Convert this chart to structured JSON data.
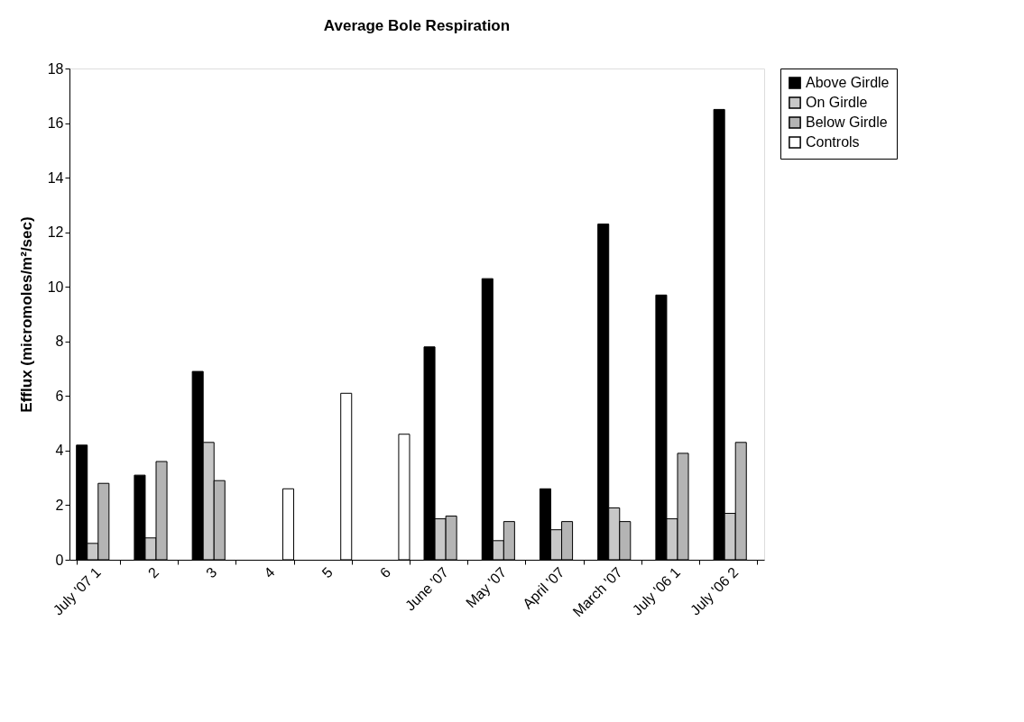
{
  "chart_data": {
    "type": "bar",
    "title": "Average Bole Respiration",
    "ylabel": "Efflux (micromoles/m²/sec)",
    "categories": [
      "July '07 1",
      "2",
      "3",
      "4",
      "5",
      "6",
      "June '07",
      "May '07",
      "April '07",
      "March '07",
      "July '06 1",
      "July '06 2"
    ],
    "series": [
      {
        "name": "Above Girdle",
        "color": "#000000",
        "values": [
          4.2,
          3.1,
          6.9,
          null,
          null,
          null,
          7.8,
          10.3,
          2.6,
          12.3,
          9.7,
          16.5
        ]
      },
      {
        "name": "On Girdle",
        "color": "#c8c8c8",
        "values": [
          0.6,
          0.8,
          4.3,
          null,
          null,
          null,
          1.5,
          0.7,
          1.1,
          1.9,
          1.5,
          1.7
        ]
      },
      {
        "name": "Below Girdle",
        "color": "#b4b4b4",
        "values": [
          2.8,
          3.6,
          2.9,
          null,
          null,
          null,
          1.6,
          1.4,
          1.4,
          1.4,
          3.9,
          4.3
        ]
      },
      {
        "name": "Controls",
        "color": "#ffffff",
        "values": [
          null,
          null,
          null,
          2.6,
          6.1,
          4.6,
          null,
          null,
          null,
          null,
          null,
          null
        ]
      }
    ],
    "ylim": [
      0,
      18
    ],
    "yticks": [
      0,
      2,
      4,
      6,
      8,
      10,
      12,
      14,
      16,
      18
    ],
    "grid": false,
    "legend": "right"
  }
}
